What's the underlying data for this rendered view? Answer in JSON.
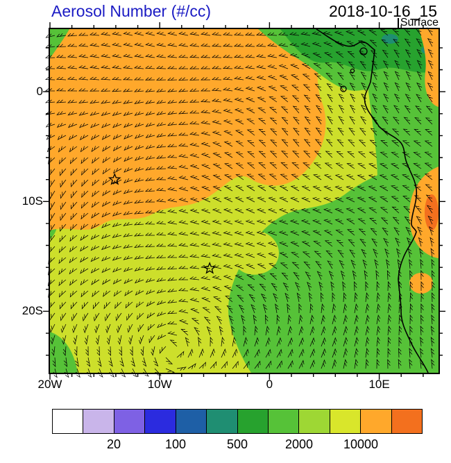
{
  "header": {
    "title": "Aerosol Number (#/cc)",
    "datetime": "2018-10-16_15",
    "level": "Surface"
  },
  "chart_data": {
    "type": "heatmap",
    "subtype": "filled-contour-latlon-map-with-wind-barbs",
    "title": "Aerosol Number (#/cc)",
    "time": "2018-10-16_15",
    "level": "Surface",
    "units": "#/cc",
    "lon_range": [
      -20,
      15.4
    ],
    "lat_range": [
      -25.6,
      5.7
    ],
    "x_axis": {
      "ticks": [
        {
          "label": "20W",
          "lon": -20
        },
        {
          "label": "10W",
          "lon": -10
        },
        {
          "label": "0",
          "lon": 0
        },
        {
          "label": "10E",
          "lon": 10
        }
      ]
    },
    "y_axis": {
      "ticks": [
        {
          "label": "0",
          "lat": 0
        },
        {
          "label": "10S",
          "lat": -10
        },
        {
          "label": "20S",
          "lat": -20
        }
      ]
    },
    "colorbar": {
      "colors": [
        "#FFFFFF",
        "#C9B5EA",
        "#7E61E4",
        "#2B2BDF",
        "#1E5FA6",
        "#1F8E72",
        "#27A22E",
        "#56C238",
        "#9ED734",
        "#D9E62B",
        "#FFA82B",
        "#F3701E"
      ],
      "tick_labels": [
        {
          "label": "20",
          "boundary_index": 2
        },
        {
          "label": "100",
          "boundary_index": 4
        },
        {
          "label": "500",
          "boundary_index": 6
        },
        {
          "label": "2000",
          "boundary_index": 8
        },
        {
          "label": "10000",
          "boundary_index": 10
        }
      ],
      "labeled_levels": [
        20,
        100,
        500,
        2000,
        10000
      ]
    },
    "regions": [
      {
        "id": "base-ocean",
        "color": "#CDDF2B",
        "value": "≈5000–10000 #/cc"
      },
      {
        "id": "green-top-left-corner",
        "color": "#56C238",
        "value": "≈1000–2000 #/cc"
      },
      {
        "id": "green-left-edge",
        "color": "#56C238",
        "value": "≈1000–2000 #/cc"
      },
      {
        "id": "green-bottom-left-corner",
        "color": "#56C238",
        "value": "≈1000–2000 #/cc"
      },
      {
        "id": "orange-main-plume",
        "color": "#FFA82B",
        "value": ">10000 #/cc"
      },
      {
        "id": "green-top-right-band",
        "color": "#56C238",
        "value": "≈1000–2000 #/cc"
      },
      {
        "id": "green-east-land",
        "color": "#56C238",
        "value": "≈1000–2000 #/cc"
      },
      {
        "id": "green-south-ocean",
        "color": "#56C238",
        "value": "≈1000–2000 #/cc"
      },
      {
        "id": "yellow-green-notch",
        "color": "#CDDF2B",
        "value": "≈5000–10000 #/cc"
      },
      {
        "id": "dark-green-top-coast",
        "color": "#27A22E",
        "value": "≈500–1000 #/cc"
      },
      {
        "id": "teal-top-spots",
        "color": "#1F8E72",
        "value": "≈200–500 #/cc"
      },
      {
        "id": "orange-land-top",
        "color": "#FFA82B",
        "value": ">10000 #/cc"
      },
      {
        "id": "orange-land-mid",
        "color": "#FFA82B",
        "value": ">10000 #/cc"
      },
      {
        "id": "red-orange-spot",
        "color": "#F3701E",
        "value": "top bin, >10000 #/cc"
      },
      {
        "id": "orange-land-low",
        "color": "#FFA82B",
        "value": ">10000 #/cc"
      }
    ],
    "markers": [
      {
        "shape": "star",
        "lon": -14.1,
        "lat": -8.0
      },
      {
        "shape": "star",
        "lon": -5.45,
        "lat": -16.1
      }
    ],
    "wind_barbs": {
      "present": true,
      "color": "#000000"
    },
    "coastline": true
  }
}
